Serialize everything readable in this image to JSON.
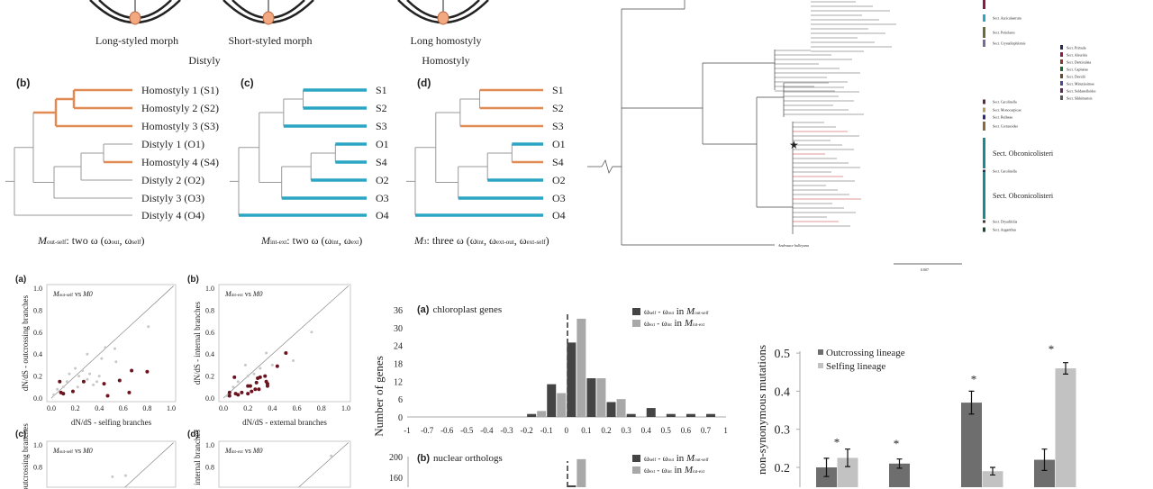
{
  "figure_top": {
    "morphs": [
      "Long-styled morph",
      "Short-styled morph",
      "Long homostyly"
    ],
    "groups": [
      "Distyly",
      "Homostyly"
    ]
  },
  "trees": [
    {
      "panel": "(b)",
      "tips": [
        "Homostyly 1 (S1)",
        "Homostyly 2 (S2)",
        "Homostyly 3 (S3)",
        "Distyly 1 (O1)",
        "Homostyly 4 (S4)",
        "Distyly 2 (O2)",
        "Distyly 3 (O3)",
        "Distyly 4 (O4)"
      ],
      "caption": {
        "model": "M",
        "model_sub": "out-self",
        "text": ": two ω (ω",
        "s1": "out",
        "mid": ", ω",
        "s2": "self",
        "end": ")"
      },
      "branch_colors": {
        "B": "orange",
        "C": "orange",
        "S1": "orange",
        "S2": "orange",
        "S3": "orange",
        "S4": "orange"
      }
    },
    {
      "panel": "(c)",
      "tips": [
        "S1",
        "S2",
        "S3",
        "O1",
        "S4",
        "O2",
        "O3",
        "O4"
      ],
      "caption": {
        "model": "M",
        "model_sub": "int-ext",
        "text": ": two ω (ω",
        "s1": "int",
        "mid": ", ω",
        "s2": "ext",
        "end": ")"
      },
      "branch_colors": {
        "S1": "teal",
        "S2": "teal",
        "S3": "teal",
        "O1": "teal",
        "S4": "teal",
        "O2": "teal",
        "O3": "teal",
        "O4": "teal"
      }
    },
    {
      "panel": "(d)",
      "tips": [
        "S1",
        "S2",
        "S3",
        "O1",
        "S4",
        "O2",
        "O3",
        "O4"
      ],
      "caption": {
        "model": "M",
        "model_sub": "3",
        "text": ": three ω (ω",
        "s1": "int",
        "mid": ", ω",
        "s2": "ext-out",
        "mid2": ", ω",
        "s3": "ext-self",
        "end": ")"
      },
      "branch_colors": {
        "S1": "orange",
        "S2": "orange",
        "S3": "orange",
        "S4": "orange",
        "O1": "teal",
        "O2": "teal",
        "O3": "teal",
        "O4": "teal"
      }
    }
  ],
  "colors": {
    "orange": "#e08a55",
    "teal": "#2aa6c4",
    "gray": "#9a9a9a",
    "dark_bar": "#444444",
    "light_bar": "#a8a8a8",
    "dark_point": "#6b1420",
    "gray_point": "#c8c8c8",
    "bar_out": "#6e6e6e",
    "bar_self": "#c2c2c2"
  },
  "phylogeny": {
    "sections": [
      {
        "label": "Sect. Auriculastrum",
        "color": "#2aa6c4"
      },
      {
        "label": "Sect. Petiolares",
        "color": "#6b6b3a"
      },
      {
        "label": "Sect. Crystallophlomis",
        "color": "#7a6a9a"
      },
      {
        "label": "Sect. Carolinella",
        "color": "#5a2a3a"
      },
      {
        "label": "Sect. Monocarpicae",
        "color": "#b89a5a"
      },
      {
        "label": "Sect. Bullatae",
        "color": "#2a2a7a"
      },
      {
        "label": "Sect. Cortusoides",
        "color": "#8a6a3a"
      },
      {
        "label": "Sect. Obconicolisteri",
        "color": "#1a8a8a"
      },
      {
        "label": "Sect. Carolinella",
        "color": "#2a2a5a"
      },
      {
        "label": "Sect. Obconicolisteri",
        "color": "#1a8a8a"
      },
      {
        "label": "Sect. Dryadifolia",
        "color": "#3a3a3a"
      },
      {
        "label": "Sect. Auganthus",
        "color": "#1a4a2a"
      }
    ],
    "legend": [
      {
        "label": "Sect. Primula",
        "color": "#2a2a5a"
      },
      {
        "label": "Sect. Aleuritia",
        "color": "#8a1a4a"
      },
      {
        "label": "Sect. Denticulata",
        "color": "#8a3a2a"
      },
      {
        "label": "Sect. Capitatae",
        "color": "#1a6a2a"
      },
      {
        "label": "Sect. Davidii",
        "color": "#6a4a2a"
      },
      {
        "label": "Sect. Minutissimae",
        "color": "#4a4a8a"
      },
      {
        "label": "Sect. Soldanelloides",
        "color": "#5a2a5a"
      },
      {
        "label": "Sect. Sikkimensis",
        "color": "#5a5a5a"
      }
    ],
    "outgroup": "Androsace bulleyana",
    "scale": "0.007"
  },
  "chart_data": [
    {
      "type": "scatter",
      "panel": "(a)",
      "title": {
        "model": "M",
        "sub": "out-self",
        "rest": " vs ",
        "m0": "M0"
      },
      "xlabel": "dN/dS - selfing branches",
      "ylabel": "dN/dS - outcrossing branches",
      "xlim": [
        0,
        1
      ],
      "ylim": [
        0,
        1
      ],
      "ticks": [
        "0.0",
        "0.2",
        "0.4",
        "0.6",
        "0.8",
        "1.0"
      ],
      "significant": [
        [
          0.07,
          0.15
        ],
        [
          0.08,
          0.05
        ],
        [
          0.1,
          0.04
        ],
        [
          0.18,
          0.06
        ],
        [
          0.27,
          0.15
        ],
        [
          0.44,
          0.13
        ],
        [
          0.47,
          0.02
        ],
        [
          0.57,
          0.16
        ],
        [
          0.65,
          0.05
        ],
        [
          0.67,
          0.25
        ],
        [
          0.8,
          0.24
        ]
      ],
      "nonsignificant": [
        [
          0.02,
          0.03
        ],
        [
          0.05,
          0.08
        ],
        [
          0.1,
          0.1
        ],
        [
          0.13,
          0.15
        ],
        [
          0.15,
          0.22
        ],
        [
          0.2,
          0.27
        ],
        [
          0.23,
          0.2
        ],
        [
          0.26,
          0.25
        ],
        [
          0.3,
          0.4
        ],
        [
          0.32,
          0.22
        ],
        [
          0.35,
          0.12
        ],
        [
          0.4,
          0.2
        ],
        [
          0.42,
          0.36
        ],
        [
          0.45,
          0.46
        ],
        [
          0.53,
          0.45
        ],
        [
          0.54,
          0.33
        ],
        [
          0.81,
          0.65
        ],
        [
          0.22,
          0.1
        ],
        [
          0.3,
          0.17
        ],
        [
          0.38,
          0.15
        ]
      ]
    },
    {
      "type": "scatter",
      "panel": "(b)",
      "title": {
        "model": "M",
        "sub": "int-ext",
        "rest": " vs ",
        "m0": "M0"
      },
      "xlabel": "dN/dS - external branches",
      "ylabel": "dN/dS - internal branches",
      "xlim": [
        0,
        1
      ],
      "ylim": [
        0,
        1
      ],
      "ticks": [
        "0.0",
        "0.2",
        "0.4",
        "0.6",
        "0.8",
        "1.0"
      ],
      "significant": [
        [
          0.05,
          0.02
        ],
        [
          0.05,
          0.05
        ],
        [
          0.09,
          0.19
        ],
        [
          0.1,
          0.04
        ],
        [
          0.12,
          0.03
        ],
        [
          0.15,
          0.05
        ],
        [
          0.2,
          0.04
        ],
        [
          0.2,
          0.11
        ],
        [
          0.22,
          0.11
        ],
        [
          0.23,
          0.06
        ],
        [
          0.26,
          0.08
        ],
        [
          0.27,
          0.14
        ],
        [
          0.28,
          0.18
        ],
        [
          0.29,
          0.08
        ],
        [
          0.3,
          0.19
        ],
        [
          0.34,
          0.2
        ],
        [
          0.35,
          0.15
        ],
        [
          0.36,
          0.11
        ],
        [
          0.36,
          0.13
        ],
        [
          0.44,
          0.29
        ],
        [
          0.51,
          0.41
        ]
      ],
      "nonsignificant": [
        [
          0.03,
          0.02
        ],
        [
          0.08,
          0.1
        ],
        [
          0.12,
          0.15
        ],
        [
          0.18,
          0.3
        ],
        [
          0.2,
          0.2
        ],
        [
          0.25,
          0.22
        ],
        [
          0.3,
          0.27
        ],
        [
          0.35,
          0.41
        ],
        [
          0.4,
          0.3
        ],
        [
          0.57,
          0.34
        ],
        [
          0.72,
          0.6
        ]
      ]
    },
    {
      "type": "scatter",
      "panel": "(c)",
      "title": {
        "model": "M",
        "sub": "out-self",
        "rest": " vs ",
        "m0": "M0"
      },
      "ylabel": "outcrossing branches",
      "xlim": [
        0,
        1
      ],
      "ylim": [
        0,
        1
      ],
      "ticks": [
        "1.0",
        "0.8"
      ],
      "nonsignificant": [
        [
          0.22,
          0.62
        ],
        [
          0.51,
          0.71
        ],
        [
          0.62,
          0.72
        ]
      ]
    },
    {
      "type": "scatter",
      "panel": "(d)",
      "title": {
        "model": "M",
        "sub": "int-ext",
        "rest": " vs ",
        "m0": "M0"
      },
      "ylabel": "internal branches",
      "xlim": [
        0,
        1
      ],
      "ylim": [
        0,
        1
      ],
      "ticks": [
        "1.0",
        "0.8"
      ],
      "nonsignificant": [
        [
          0.88,
          0.9
        ]
      ]
    },
    {
      "type": "bar",
      "panel": "(a)",
      "title": "chloroplast genes",
      "ylabel": "Number of genes",
      "ylim": [
        0,
        36
      ],
      "yticks": [
        "0",
        "6",
        "12",
        "18",
        "24",
        "30",
        "36"
      ],
      "xticks": [
        "-1",
        "-0.7",
        "-0.6",
        "-0.5",
        "-0.4",
        "-0.3",
        "-0.2",
        "-0.1",
        "0",
        "0.1",
        "0.2",
        "0.3",
        "0.4",
        "0.5",
        "0.6",
        "0.7",
        "1"
      ],
      "legend": [
        {
          "a": "ω",
          "as": "self",
          "op": " - ω",
          "bs": "out",
          "in": " in ",
          "m": "M",
          "ms": "out-self"
        },
        {
          "a": "ω",
          "as": "ext",
          "op": " - ω",
          "bs": "int",
          "in": " in ",
          "m": "M",
          "ms": "int-ext"
        }
      ],
      "series": [
        {
          "values": [
            0,
            0,
            0,
            0,
            0,
            0,
            1,
            11,
            25,
            13,
            5,
            1,
            3,
            1,
            1,
            1
          ]
        },
        {
          "values": [
            0,
            0,
            0,
            0,
            0,
            0,
            2,
            8,
            33,
            13,
            6,
            0,
            0,
            0,
            0,
            0
          ]
        }
      ]
    },
    {
      "type": "bar",
      "panel": "(b)",
      "title": "nuclear orthologs",
      "ylim": [
        0,
        200
      ],
      "yticks": [
        "160",
        "200"
      ],
      "legend": [
        {
          "a": "ω",
          "as": "self",
          "op": " - ω",
          "bs": "out",
          "in": " in ",
          "m": "M",
          "ms": "out-self"
        },
        {
          "a": "ω",
          "as": "ext",
          "op": " - ω",
          "bs": "int",
          "in": " in ",
          "m": "M",
          "ms": "int-ext"
        }
      ],
      "series": [
        {
          "values": [
            0,
            0,
            0,
            0,
            0,
            0,
            0,
            0,
            140,
            0,
            0,
            0,
            0,
            0,
            0,
            0
          ]
        },
        {
          "values": [
            0,
            0,
            0,
            0,
            0,
            0,
            0,
            0,
            195,
            0,
            0,
            0,
            0,
            0,
            0,
            0
          ]
        }
      ]
    },
    {
      "type": "bar",
      "ylabel": "non-synonymous mutations",
      "ylim": [
        0.15,
        0.5
      ],
      "yticks": [
        "0.2",
        "0.3",
        "0.4",
        "0.5"
      ],
      "series": [
        {
          "name": "Outcrossing lineage",
          "values": [
            0.2,
            0.21,
            0.37,
            0.22
          ],
          "errors": [
            0.024,
            0.012,
            0.03,
            0.028
          ]
        },
        {
          "name": "Selfing lineage",
          "values": [
            0.225,
            null,
            0.19,
            0.46
          ],
          "errors": [
            0.023,
            null,
            0.01,
            0.015
          ]
        }
      ],
      "significance": [
        "*",
        "*",
        "*",
        "*"
      ]
    }
  ]
}
